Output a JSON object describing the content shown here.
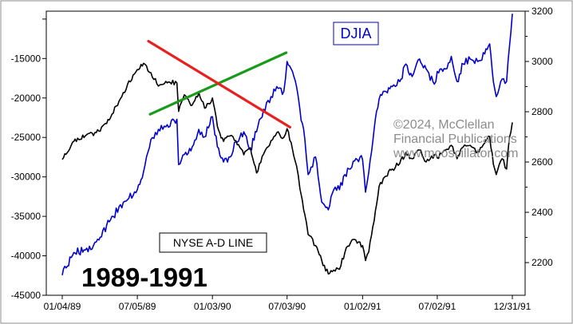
{
  "chart_data": {
    "type": "line",
    "title": "1989-1991",
    "watermark": [
      "©2024, McClellan",
      "Financial Publications",
      "www.mcoscillator.com"
    ],
    "x_ticks": [
      "01/04/89",
      "07/05/89",
      "01/03/90",
      "07/03/90",
      "01/02/91",
      "07/02/91",
      "12/31/91"
    ],
    "right_axis": {
      "label": "DJIA",
      "ticks": [
        2200,
        2400,
        2600,
        2800,
        3000,
        3200
      ],
      "range": [
        2070,
        3200
      ]
    },
    "left_axis": {
      "label": "NYSE A-D LINE",
      "ticks": [
        -45000,
        -40000,
        -35000,
        -30000,
        -25000,
        -20000,
        -15000
      ],
      "range": [
        -45000,
        -9000
      ]
    },
    "series": [
      {
        "name": "DJIA",
        "color": "#0000cc",
        "axis": "right",
        "x": [
          "01/04/89",
          "02/01/89",
          "03/01/89",
          "04/03/89",
          "05/01/89",
          "06/01/89",
          "07/05/89",
          "07/20/89",
          "08/07/89",
          "08/25/89",
          "09/12/89",
          "10/09/89",
          "10/13/89",
          "10/27/89",
          "11/15/89",
          "12/01/89",
          "12/15/89",
          "01/03/90",
          "01/15/90",
          "01/30/90",
          "02/15/90",
          "03/01/90",
          "03/20/90",
          "04/05/90",
          "04/20/90",
          "05/07/90",
          "05/25/90",
          "06/08/90",
          "06/25/90",
          "07/03/90",
          "07/16/90",
          "07/26/90",
          "08/03/90",
          "08/15/90",
          "08/23/90",
          "09/10/90",
          "09/25/90",
          "10/11/90",
          "10/24/90",
          "11/07/90",
          "11/20/90",
          "12/07/90",
          "12/20/90",
          "01/02/91",
          "01/09/91",
          "01/17/91",
          "01/30/91",
          "02/11/91",
          "02/28/91",
          "03/15/91",
          "04/02/91",
          "04/17/91",
          "05/02/91",
          "05/20/91",
          "06/05/91",
          "06/25/91",
          "07/02/91",
          "07/22/91",
          "08/05/91",
          "08/19/91",
          "09/03/91",
          "09/20/91",
          "10/08/91",
          "10/25/91",
          "11/06/91",
          "11/15/91",
          "11/22/91",
          "12/06/91",
          "12/17/91",
          "12/24/91",
          "12/31/91"
        ],
        "y": [
          2150,
          2240,
          2250,
          2290,
          2370,
          2440,
          2490,
          2560,
          2690,
          2730,
          2740,
          2770,
          2590,
          2630,
          2660,
          2730,
          2700,
          2780,
          2660,
          2600,
          2620,
          2680,
          2720,
          2650,
          2720,
          2810,
          2860,
          2900,
          2880,
          3000,
          2960,
          2900,
          2810,
          2690,
          2550,
          2620,
          2440,
          2410,
          2490,
          2490,
          2550,
          2580,
          2610,
          2610,
          2480,
          2560,
          2730,
          2850,
          2880,
          2900,
          2920,
          2990,
          2940,
          3010,
          2970,
          2910,
          2960,
          2970,
          3020,
          2920,
          2990,
          3010,
          3000,
          3030,
          3070,
          2920,
          2860,
          2930,
          2920,
          3060,
          3190
        ]
      },
      {
        "name": "NYSE A-D LINE",
        "color": "#000000",
        "axis": "left",
        "x": [
          "01/04/89",
          "02/01/89",
          "03/01/89",
          "04/03/89",
          "05/01/89",
          "06/01/89",
          "07/05/89",
          "07/20/89",
          "08/07/89",
          "08/25/89",
          "09/12/89",
          "10/09/89",
          "10/13/89",
          "10/27/89",
          "11/15/89",
          "12/01/89",
          "12/15/89",
          "01/03/90",
          "01/15/90",
          "01/30/90",
          "02/15/90",
          "03/01/90",
          "03/20/90",
          "04/05/90",
          "04/20/90",
          "05/07/90",
          "05/25/90",
          "06/08/90",
          "06/25/90",
          "07/03/90",
          "07/16/90",
          "07/26/90",
          "08/03/90",
          "08/15/90",
          "08/23/90",
          "09/10/90",
          "09/25/90",
          "10/11/90",
          "10/24/90",
          "11/07/90",
          "11/20/90",
          "12/07/90",
          "12/20/90",
          "01/02/91",
          "01/09/91",
          "01/17/91",
          "01/30/91",
          "02/11/91",
          "02/28/91",
          "03/15/91",
          "04/02/91",
          "04/17/91",
          "05/02/91",
          "05/20/91",
          "06/05/91",
          "06/25/91",
          "07/02/91",
          "07/22/91",
          "08/05/91",
          "08/19/91",
          "09/03/91",
          "09/20/91",
          "10/08/91",
          "10/25/91",
          "11/06/91",
          "11/15/91",
          "11/22/91",
          "12/06/91",
          "12/17/91",
          "12/24/91",
          "12/31/91"
        ],
        "y": [
          -27800,
          -25500,
          -24800,
          -24200,
          -22500,
          -19300,
          -16400,
          -15600,
          -16800,
          -18500,
          -17900,
          -18100,
          -21700,
          -19600,
          -20900,
          -19300,
          -21300,
          -20000,
          -23600,
          -25500,
          -24800,
          -25400,
          -27200,
          -26300,
          -29500,
          -27100,
          -25400,
          -24400,
          -25000,
          -23900,
          -26500,
          -28600,
          -31500,
          -34800,
          -37300,
          -38700,
          -40600,
          -42300,
          -41800,
          -41700,
          -39600,
          -38000,
          -38400,
          -38700,
          -40600,
          -39500,
          -35600,
          -31200,
          -29900,
          -29000,
          -28300,
          -26900,
          -27700,
          -26600,
          -28100,
          -27200,
          -27600,
          -26600,
          -26000,
          -27700,
          -26200,
          -26000,
          -26800,
          -25700,
          -24900,
          -28400,
          -29700,
          -27700,
          -29000,
          -25000,
          -23100
        ]
      }
    ],
    "trendlines": [
      {
        "color": "#1a9a1a",
        "axis": "right",
        "from": {
          "x": "08/05/89",
          "y": 2790
        },
        "to": {
          "x": "07/01/90",
          "y": 3035
        }
      },
      {
        "color": "#e82020",
        "axis": "left",
        "from": {
          "x": "08/01/89",
          "y": -12800
        },
        "to": {
          "x": "07/10/90",
          "y": -23700
        }
      }
    ],
    "legend_labels": {
      "djia": "DJIA",
      "ad_line": "NYSE A-D LINE"
    },
    "grid": false
  }
}
